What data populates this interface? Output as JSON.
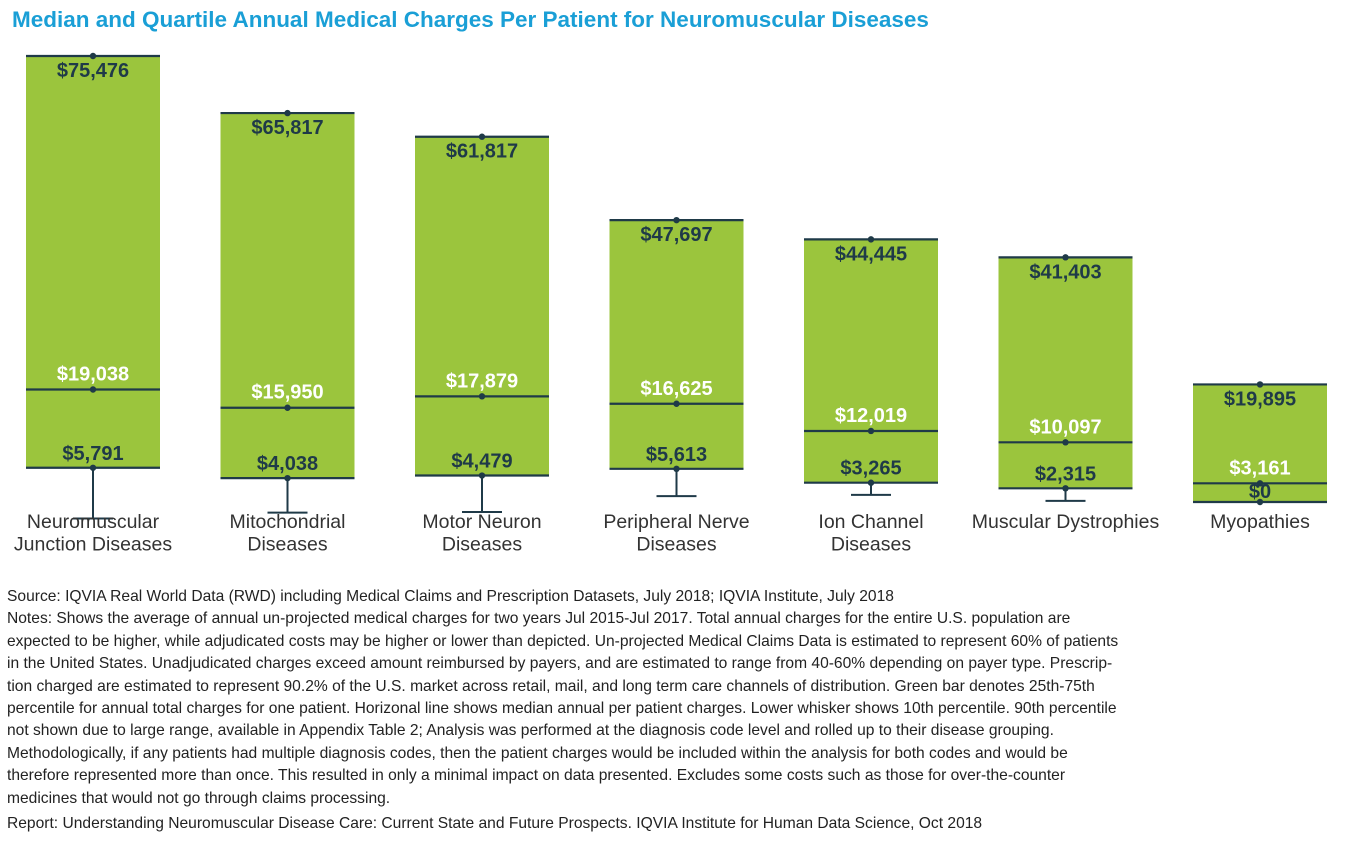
{
  "chart_data": {
    "type": "box",
    "title": "Median and Quartile Annual Medical Charges Per Patient for Neuromuscular Diseases",
    "categories": [
      [
        "Neuromuscular",
        "Junction Diseases"
      ],
      [
        "Mitochondrial",
        "Diseases"
      ],
      [
        "Motor Neuron",
        "Diseases"
      ],
      [
        "Peripheral Nerve",
        "Diseases"
      ],
      [
        "Ion Channel",
        "Diseases"
      ],
      [
        "Muscular Dystrophies"
      ],
      [
        "Myopathies"
      ]
    ],
    "series": [
      {
        "p75": 75476,
        "median": 19038,
        "p25": 5791,
        "p10": -2800,
        "labels": {
          "p75": "$75,476",
          "median": "$19,038",
          "p25": "$5,791"
        }
      },
      {
        "p75": 65817,
        "median": 15950,
        "p25": 4038,
        "p10": -1800,
        "labels": {
          "p75": "$65,817",
          "median": "$15,950",
          "p25": "$4,038"
        }
      },
      {
        "p75": 61817,
        "median": 17879,
        "p25": 4479,
        "p10": -1700,
        "labels": {
          "p75": "$61,817",
          "median": "$17,879",
          "p25": "$4,479"
        }
      },
      {
        "p75": 47697,
        "median": 16625,
        "p25": 5613,
        "p10": 1000,
        "labels": {
          "p75": "$47,697",
          "median": "$16,625",
          "p25": "$5,613"
        }
      },
      {
        "p75": 44445,
        "median": 12019,
        "p25": 3265,
        "p10": 1200,
        "labels": {
          "p75": "$44,445",
          "median": "$12,019",
          "p25": "$3,265"
        }
      },
      {
        "p75": 41403,
        "median": 10097,
        "p25": 2315,
        "p10": 200,
        "labels": {
          "p75": "$41,403",
          "median": "$10,097",
          "p25": "$2,315"
        }
      },
      {
        "p75": 19895,
        "median": 3161,
        "p25": 0,
        "p10": 0,
        "labels": {
          "p75": "$19,895",
          "median": "$3,161",
          "p25": "$0"
        }
      }
    ],
    "colors": {
      "box": "#9bc53d",
      "line": "#1f3a48",
      "label": "#1f3a48",
      "median_label": "#ffffff",
      "title": "#1a9fd6"
    }
  },
  "notes": {
    "source": "Source: IQVIA Real World Data (RWD) including Medical Claims and Prescription Datasets, July 2018; IQVIA Institute, July 2018",
    "notes_lines": [
      "Notes: Shows the average of annual un-projected medical charges for two years Jul 2015-Jul 2017. Total annual charges for the entire U.S. population are",
      "expected to be higher, while adjudicated costs may be higher or lower than depicted. Un-projected Medical Claims Data is estimated to represent 60% of patients",
      "in the United States. Unadjudicated charges exceed amount reimbursed by payers, and are estimated to range from 40-60% depending on payer type. Prescrip-",
      "tion charged are estimated to represent 90.2% of the U.S. market across retail, mail, and long term care channels of distribution. Green bar denotes 25th-75th",
      "percentile for annual total charges for one patient. Horizonal line shows median annual per patient charges. Lower whisker shows 10th percentile. 90th percentile",
      "not shown due to large range, available in Appendix Table 2; Analysis was performed at the diagnosis code level and rolled up to their disease grouping.",
      "Methodologically, if any patients had multiple diagnosis codes, then the patient charges would be included within the analysis for both codes and would be",
      "therefore represented more than once. This resulted in only a minimal impact on data presented. Excludes some costs such as those for over-the-counter",
      "medicines that would not go through claims processing."
    ],
    "report": "Report: Understanding Neuromuscular Disease Care: Current State and Future Prospects. IQVIA Institute for Human Data Science, Oct 2018"
  }
}
